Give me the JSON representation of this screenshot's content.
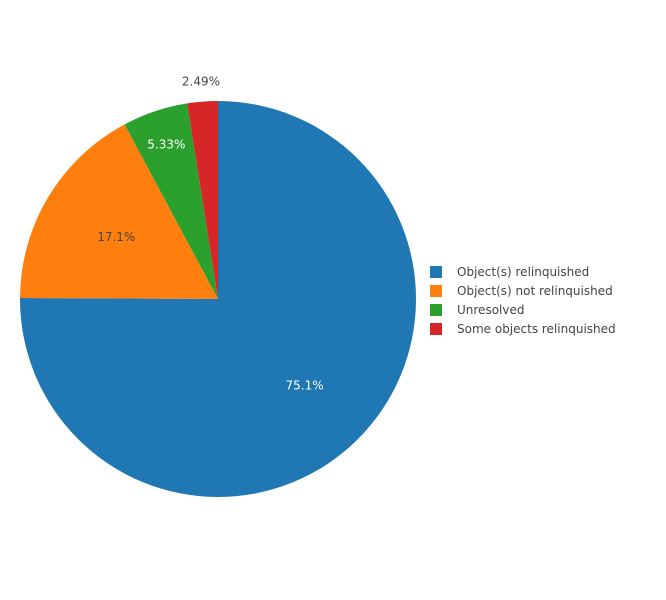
{
  "chart_data": {
    "type": "pie",
    "title": "",
    "labels": [
      "Object(s) relinquished",
      "Object(s) not relinquished",
      "Unresolved",
      "Some objects relinquished"
    ],
    "values": [
      75.1,
      17.1,
      5.33,
      2.49
    ],
    "display_labels": [
      "75.1%",
      "17.1%",
      "5.33%",
      "2.49%"
    ],
    "colors": [
      "#1f77b4",
      "#ff7f0e",
      "#2ca02c",
      "#d62728"
    ],
    "label_colors": [
      "#ffffff",
      "#444444",
      "#ffffff",
      "#444444"
    ],
    "direction": "clockwise",
    "legend_position": "right"
  }
}
